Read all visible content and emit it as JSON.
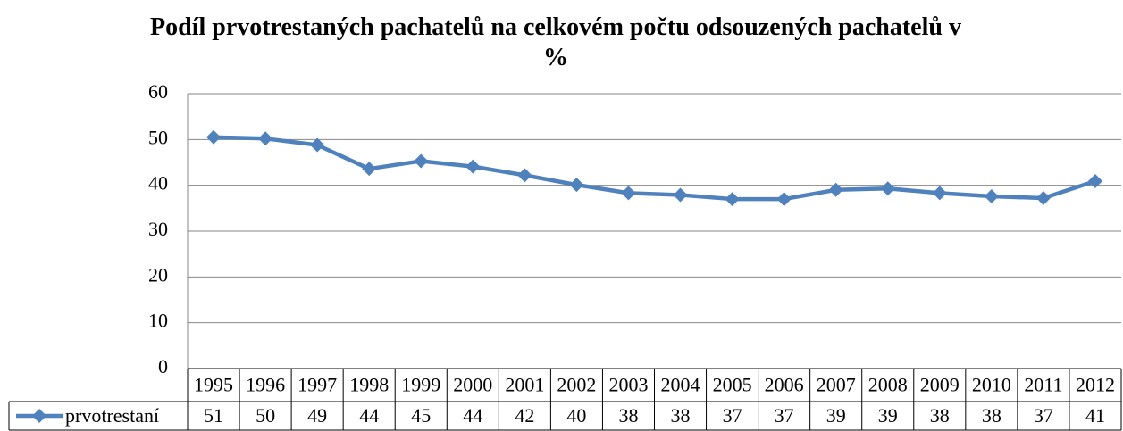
{
  "chart_data": {
    "type": "line",
    "title": "Podíl prvotrestaných pachatelů na celkovém počtu odsouzených pachatelů v %",
    "categories": [
      "1995",
      "1996",
      "1997",
      "1998",
      "1999",
      "2000",
      "2001",
      "2002",
      "2003",
      "2004",
      "2005",
      "2006",
      "2007",
      "2008",
      "2009",
      "2010",
      "2011",
      "2012"
    ],
    "series": [
      {
        "name": "prvotrestaní",
        "color": "#4f81bd",
        "values": [
          50.5,
          50.2,
          48.8,
          43.6,
          45.3,
          44.1,
          42.2,
          40.1,
          38.3,
          37.9,
          37.0,
          37.0,
          39.0,
          39.3,
          38.3,
          37.6,
          37.2,
          40.9
        ],
        "value_labels": [
          "51",
          "50",
          "49",
          "44",
          "45",
          "44",
          "42",
          "40",
          "38",
          "38",
          "37",
          "37",
          "39",
          "39",
          "38",
          "38",
          "37",
          "41"
        ]
      }
    ],
    "ylim": [
      0,
      60
    ],
    "yticks": [
      0,
      10,
      20,
      30,
      40,
      50,
      60
    ],
    "grid": true
  }
}
